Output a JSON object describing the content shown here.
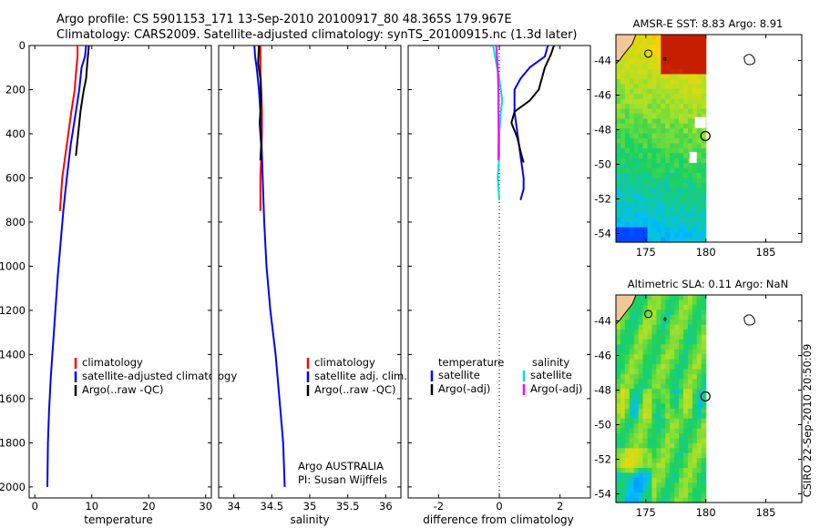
{
  "header": {
    "line1": "Argo profile: CS 5901153_171 13-Sep-2010 20100917_80 48.365S 179.967E",
    "line2": "Climatology: CARS2009. Satellite-adjusted climatology: synTS_20100915.nc (1.3d later)"
  },
  "credit": "Argo AUSTRALIA",
  "pi": "PI: Susan Wijffels",
  "timestamp": "CSIRO 22-Sep-2010 20:50:09",
  "depth_ticks": [
    "0",
    "200",
    "400",
    "600",
    "800",
    "1000",
    "1200",
    "1400",
    "1600",
    "1800",
    "2000"
  ],
  "chart_data": [
    {
      "type": "line",
      "xlabel": "temperature",
      "ylim": [
        2050,
        0
      ],
      "xlim": [
        -1,
        31
      ],
      "xticks": [
        "0",
        "10",
        "20",
        "30"
      ],
      "legend": [
        "climatology",
        "satellite-adjusted climatology",
        "Argo(..raw -QC)"
      ],
      "legend_position": "bottom-center",
      "series": [
        {
          "name": "climatology",
          "color": "#ff0000",
          "x": [
            7.5,
            7.5,
            7.3,
            7.0,
            6.4,
            5.6,
            4.8,
            4.4
          ],
          "y": [
            0,
            50,
            100,
            200,
            300,
            450,
            600,
            750
          ]
        },
        {
          "name": "satellite-adjusted climatology",
          "color": "#0000ff",
          "x": [
            9.0,
            8.8,
            8.2,
            7.8,
            7.2,
            6.3,
            5.6,
            5.0,
            4.5,
            4.0,
            3.6,
            3.2,
            2.8,
            2.5,
            2.3,
            2.2
          ],
          "y": [
            0,
            50,
            100,
            200,
            300,
            450,
            600,
            750,
            900,
            1050,
            1200,
            1350,
            1500,
            1650,
            1800,
            2000
          ]
        },
        {
          "name": "Argo(..raw -QC)",
          "color": "#000000",
          "x": [
            9.5,
            9.2,
            9.0,
            8.6,
            8.3,
            8.0,
            7.6,
            7.2
          ],
          "y": [
            0,
            80,
            150,
            200,
            250,
            300,
            400,
            500
          ]
        }
      ]
    },
    {
      "type": "line",
      "xlabel": "salinity",
      "ylim": [
        2050,
        0
      ],
      "xlim": [
        33.8,
        36.2
      ],
      "xticks": [
        "34",
        "34.5",
        "35",
        "35.5",
        "36"
      ],
      "legend": [
        "climatology",
        "satellite adj. clim.",
        "Argo(..raw -QC)"
      ],
      "legend_position": "bottom-center",
      "series": [
        {
          "name": "climatology",
          "color": "#ff0000",
          "x": [
            34.35,
            34.35,
            34.36,
            34.37,
            34.37,
            34.36,
            34.35,
            34.35
          ],
          "y": [
            0,
            100,
            200,
            300,
            400,
            500,
            600,
            750
          ]
        },
        {
          "name": "satellite adj. clim.",
          "color": "#0000ff",
          "x": [
            34.27,
            34.28,
            34.3,
            34.33,
            34.35,
            34.36,
            34.37,
            34.38,
            34.4,
            34.43,
            34.48,
            34.55,
            34.6,
            34.65,
            34.67
          ],
          "y": [
            0,
            50,
            100,
            200,
            300,
            400,
            500,
            600,
            800,
            1000,
            1200,
            1400,
            1600,
            1800,
            2000
          ]
        },
        {
          "name": "Argo(..raw -QC)",
          "color": "#000000",
          "x": [
            34.33,
            34.32,
            34.35,
            34.36,
            34.34,
            34.35,
            34.36,
            34.35
          ],
          "y": [
            0,
            80,
            150,
            250,
            350,
            400,
            450,
            520
          ]
        }
      ]
    },
    {
      "type": "line",
      "xlabel": "difference from climatology",
      "ylim": [
        2050,
        0
      ],
      "xlim": [
        -3,
        3
      ],
      "xticks": [
        "-2",
        "0",
        "2"
      ],
      "legend_titles": [
        "temperature",
        "salinity"
      ],
      "legend": [
        "satellite",
        "Argo(-adj)",
        "satellite",
        "Argo(-adj)"
      ],
      "legend_position": "bottom-center",
      "series": [
        {
          "name": "satellite",
          "group": "temperature",
          "color": "#0000ff",
          "x": [
            1.6,
            1.5,
            1.0,
            0.7,
            0.5,
            0.5,
            0.6,
            0.7,
            0.8,
            0.8,
            0.7
          ],
          "y": [
            0,
            50,
            100,
            150,
            200,
            300,
            400,
            500,
            600,
            650,
            700
          ]
        },
        {
          "name": "Argo(-adj)",
          "group": "temperature",
          "color": "#000000",
          "x": [
            1.8,
            1.7,
            1.5,
            1.3,
            1.0,
            0.5,
            0.4,
            0.6,
            0.7,
            0.8
          ],
          "y": [
            0,
            40,
            100,
            200,
            250,
            300,
            350,
            420,
            480,
            530
          ]
        },
        {
          "name": "satellite",
          "group": "salinity",
          "color": "#00dddd",
          "x": [
            -0.2,
            -0.1,
            0.0,
            0.1,
            0.05,
            0.0,
            0.0,
            -0.05,
            0.0
          ],
          "y": [
            0,
            80,
            150,
            250,
            300,
            400,
            500,
            600,
            700
          ]
        },
        {
          "name": "Argo(-adj)",
          "group": "salinity",
          "color": "#ff00ff",
          "x": [
            -0.1,
            -0.05,
            -0.03,
            -0.03,
            -0.02,
            -0.03
          ],
          "y": [
            0,
            100,
            200,
            300,
            400,
            520
          ]
        }
      ]
    },
    {
      "type": "heatmap",
      "title": "AMSR-E SST: 8.83 Argo: 8.91",
      "xticks": [
        "175",
        "180",
        "185"
      ],
      "yticks": [
        "-44",
        "-46",
        "-48",
        "-50",
        "-52",
        "-54"
      ],
      "xlim": [
        172.5,
        188
      ],
      "ylim": [
        -54.5,
        -42.5
      ],
      "float_position": [
        179.967,
        -48.365
      ]
    },
    {
      "type": "heatmap",
      "title": "Altimetric SLA: 0.11 Argo: NaN",
      "xticks": [
        "175",
        "180",
        "185"
      ],
      "yticks": [
        "-44",
        "-46",
        "-48",
        "-50",
        "-52",
        "-54"
      ],
      "xlim": [
        172.5,
        188
      ],
      "ylim": [
        -54.5,
        -42.5
      ],
      "float_position": [
        179.967,
        -48.365
      ]
    }
  ]
}
